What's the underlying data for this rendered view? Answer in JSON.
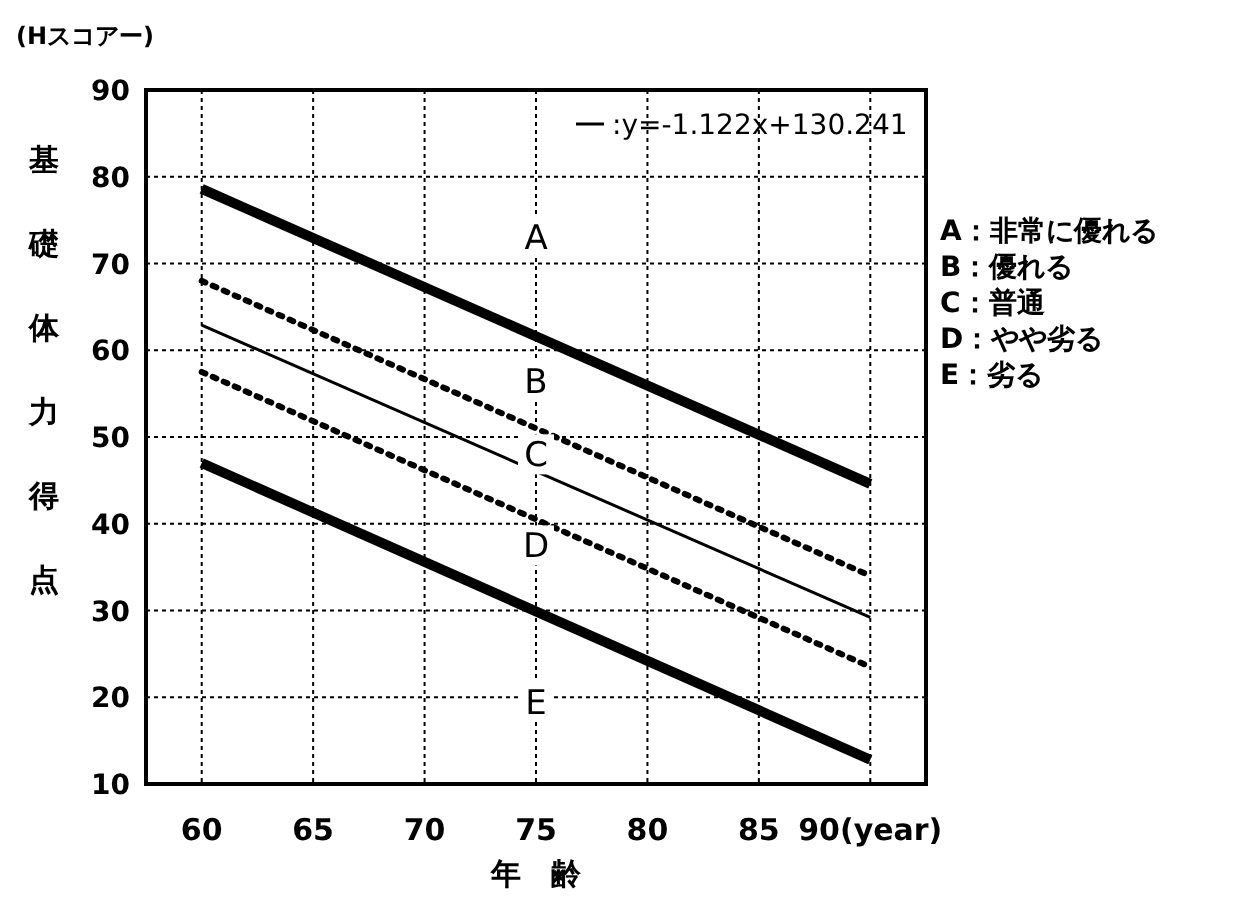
{
  "chart_data": {
    "type": "line",
    "ylabel": "基礎体力得点",
    "xlabel": "年　齢",
    "x": [
      60,
      90
    ],
    "series": [
      {
        "color": "#000000",
        "line_style": "solid",
        "values": [
          78.6,
          44.6
        ]
      },
      {
        "color": "#000000",
        "line_style": "dotted",
        "values": [
          68,
          34
        ]
      },
      {
        "name": ":y=-1.122x+130.241",
        "color": "#000000",
        "line_style": "solid",
        "values": [
          62.9,
          29.2
        ]
      },
      {
        "color": "#000000",
        "line_style": "dotted",
        "values": [
          57.5,
          23.5
        ]
      },
      {
        "color": "#000000",
        "line_style": "solid",
        "values": [
          47,
          12.8
        ]
      }
    ],
    "xlim": [
      57.5,
      92.5
    ],
    "ylim": [
      10,
      90
    ],
    "xticks": [
      60,
      65,
      70,
      75,
      80,
      85,
      {
        "value": 90,
        "label": "90(year)"
      }
    ],
    "yticks": [
      10,
      20,
      30,
      40,
      50,
      60,
      70,
      80,
      90
    ],
    "grid": true,
    "legend": "top right",
    "marker": "none",
    "annotations": [
      "(Hスコアー)",
      {
        "text": "A",
        "y": 73
      },
      {
        "text": "B",
        "y": 56.5
      },
      {
        "text": "C",
        "y": 48
      },
      {
        "text": "D",
        "y": 37.5
      },
      {
        "text": "E",
        "y": 19.5
      },
      "A：非常に優れる",
      "B：優れる",
      "C：普通",
      "D：やや劣る",
      "E：劣る"
    ]
  }
}
